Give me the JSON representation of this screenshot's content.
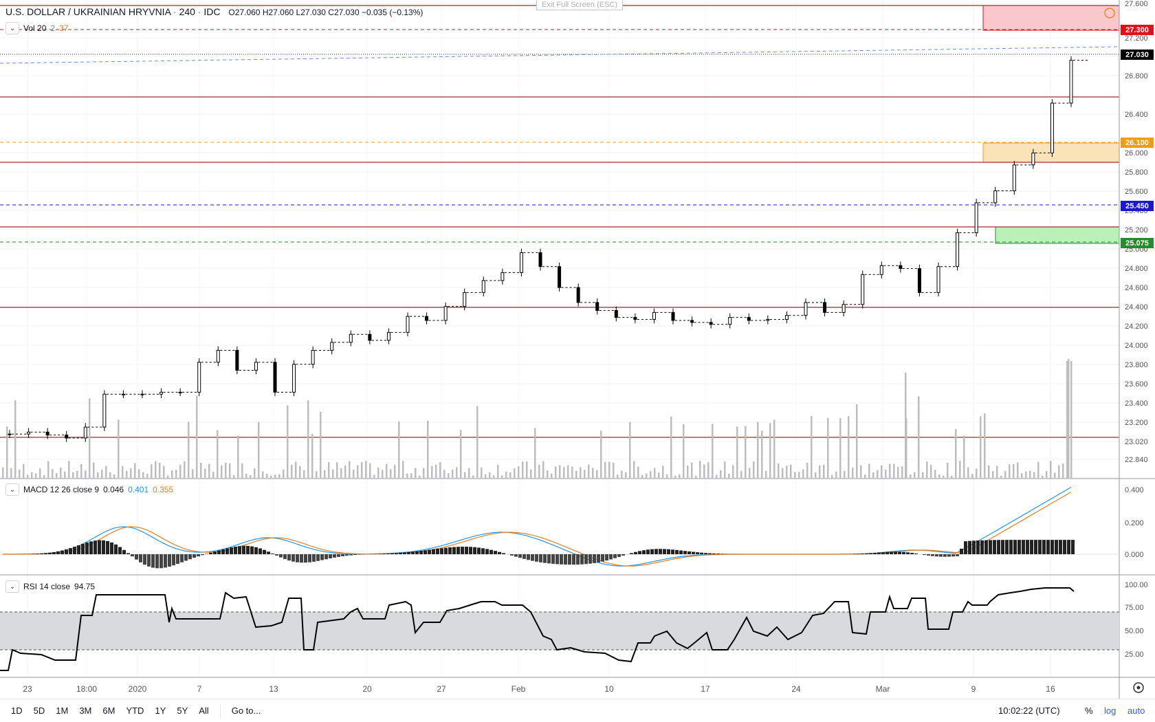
{
  "header": {
    "symbol": "U.S. DOLLAR / UKRAINIAN HRYVNIA",
    "interval": "240",
    "source": "IDC",
    "open_label": "O",
    "open": "27.060",
    "high_label": "H",
    "high": "27.060",
    "low_label": "L",
    "low": "27.030",
    "close_label": "C",
    "close": "27.030",
    "change": "−0.035 (−0.13%)",
    "exit_fullscreen": "Exit Full Screen (ESC)"
  },
  "indicators": {
    "vol": {
      "name": "Vol 20",
      "v1": "2",
      "v2": "37"
    },
    "macd": {
      "name": "MACD 12 26 close 9",
      "hist": "0.046",
      "macd": "0.401",
      "signal": "0.355"
    },
    "rsi": {
      "name": "RSI 14 close",
      "value": "94.75"
    }
  },
  "price_axis": {
    "ticks": [
      "27.600",
      "27.200",
      "26.800",
      "26.400",
      "26.000",
      "25.800",
      "25.600",
      "25.400",
      "25.200",
      "25.000",
      "24.800",
      "24.600",
      "24.400",
      "24.200",
      "24.000",
      "23.800",
      "23.600",
      "23.400",
      "23.200",
      "23.020",
      "22.840"
    ],
    "tags": [
      {
        "label": "27.300",
        "color": "#e0111b"
      },
      {
        "label": "27.030",
        "color": "#000000"
      },
      {
        "label": "26.100",
        "color": "#f59c14"
      },
      {
        "label": "25.450",
        "color": "#1a1acc"
      },
      {
        "label": "25.075",
        "color": "#268a2e"
      }
    ]
  },
  "macd_axis": {
    "ticks": [
      "0.400",
      "0.200",
      "0.000"
    ]
  },
  "rsi_axis": {
    "ticks": [
      "100.00",
      "75.00",
      "50.00",
      "25.00"
    ]
  },
  "time_axis": {
    "ticks": [
      "23",
      "18:00",
      "2020",
      "7",
      "13",
      "20",
      "27",
      "Feb",
      "10",
      "17",
      "24",
      "Mar",
      "9",
      "16"
    ]
  },
  "bottombar": {
    "ranges": [
      "1D",
      "5D",
      "1M",
      "3M",
      "6M",
      "YTD",
      "1Y",
      "5Y",
      "All"
    ],
    "goto": "Go to...",
    "clock": "10:02:22 (UTC)",
    "percent": "%",
    "log": "log",
    "auto": "auto"
  },
  "colors": {
    "red_zone": "#f8c8cc",
    "orange_zone": "#fbe3b8",
    "green_zone": "#b9f1b9",
    "hline": "#a52a2a",
    "volume": "#bdbdbf",
    "macd_line": "#2196f3",
    "signal_line": "#e67e22",
    "rsi_band": "#d9dadd"
  },
  "chart_data": {
    "type": "candlestick",
    "price_levels": [
      27.3,
      26.1,
      25.45,
      25.075
    ],
    "last_price": 27.03,
    "closes": [
      23.28,
      23.3,
      23.27,
      23.24,
      23.35,
      23.68,
      23.68,
      23.68,
      23.7,
      23.7,
      24.0,
      24.12,
      23.92,
      24.0,
      23.7,
      23.98,
      24.12,
      24.2,
      24.28,
      24.22,
      24.3,
      24.46,
      24.42,
      24.56,
      24.7,
      24.82,
      24.9,
      25.1,
      24.96,
      24.75,
      24.6,
      24.52,
      24.45,
      24.43,
      24.5,
      24.42,
      24.4,
      24.38,
      24.45,
      24.42,
      24.43,
      24.47,
      24.6,
      24.5,
      24.58,
      24.88,
      24.97,
      24.94,
      24.7,
      24.96,
      25.3,
      25.6,
      25.72,
      25.98,
      26.1,
      26.6,
      27.03
    ]
  }
}
